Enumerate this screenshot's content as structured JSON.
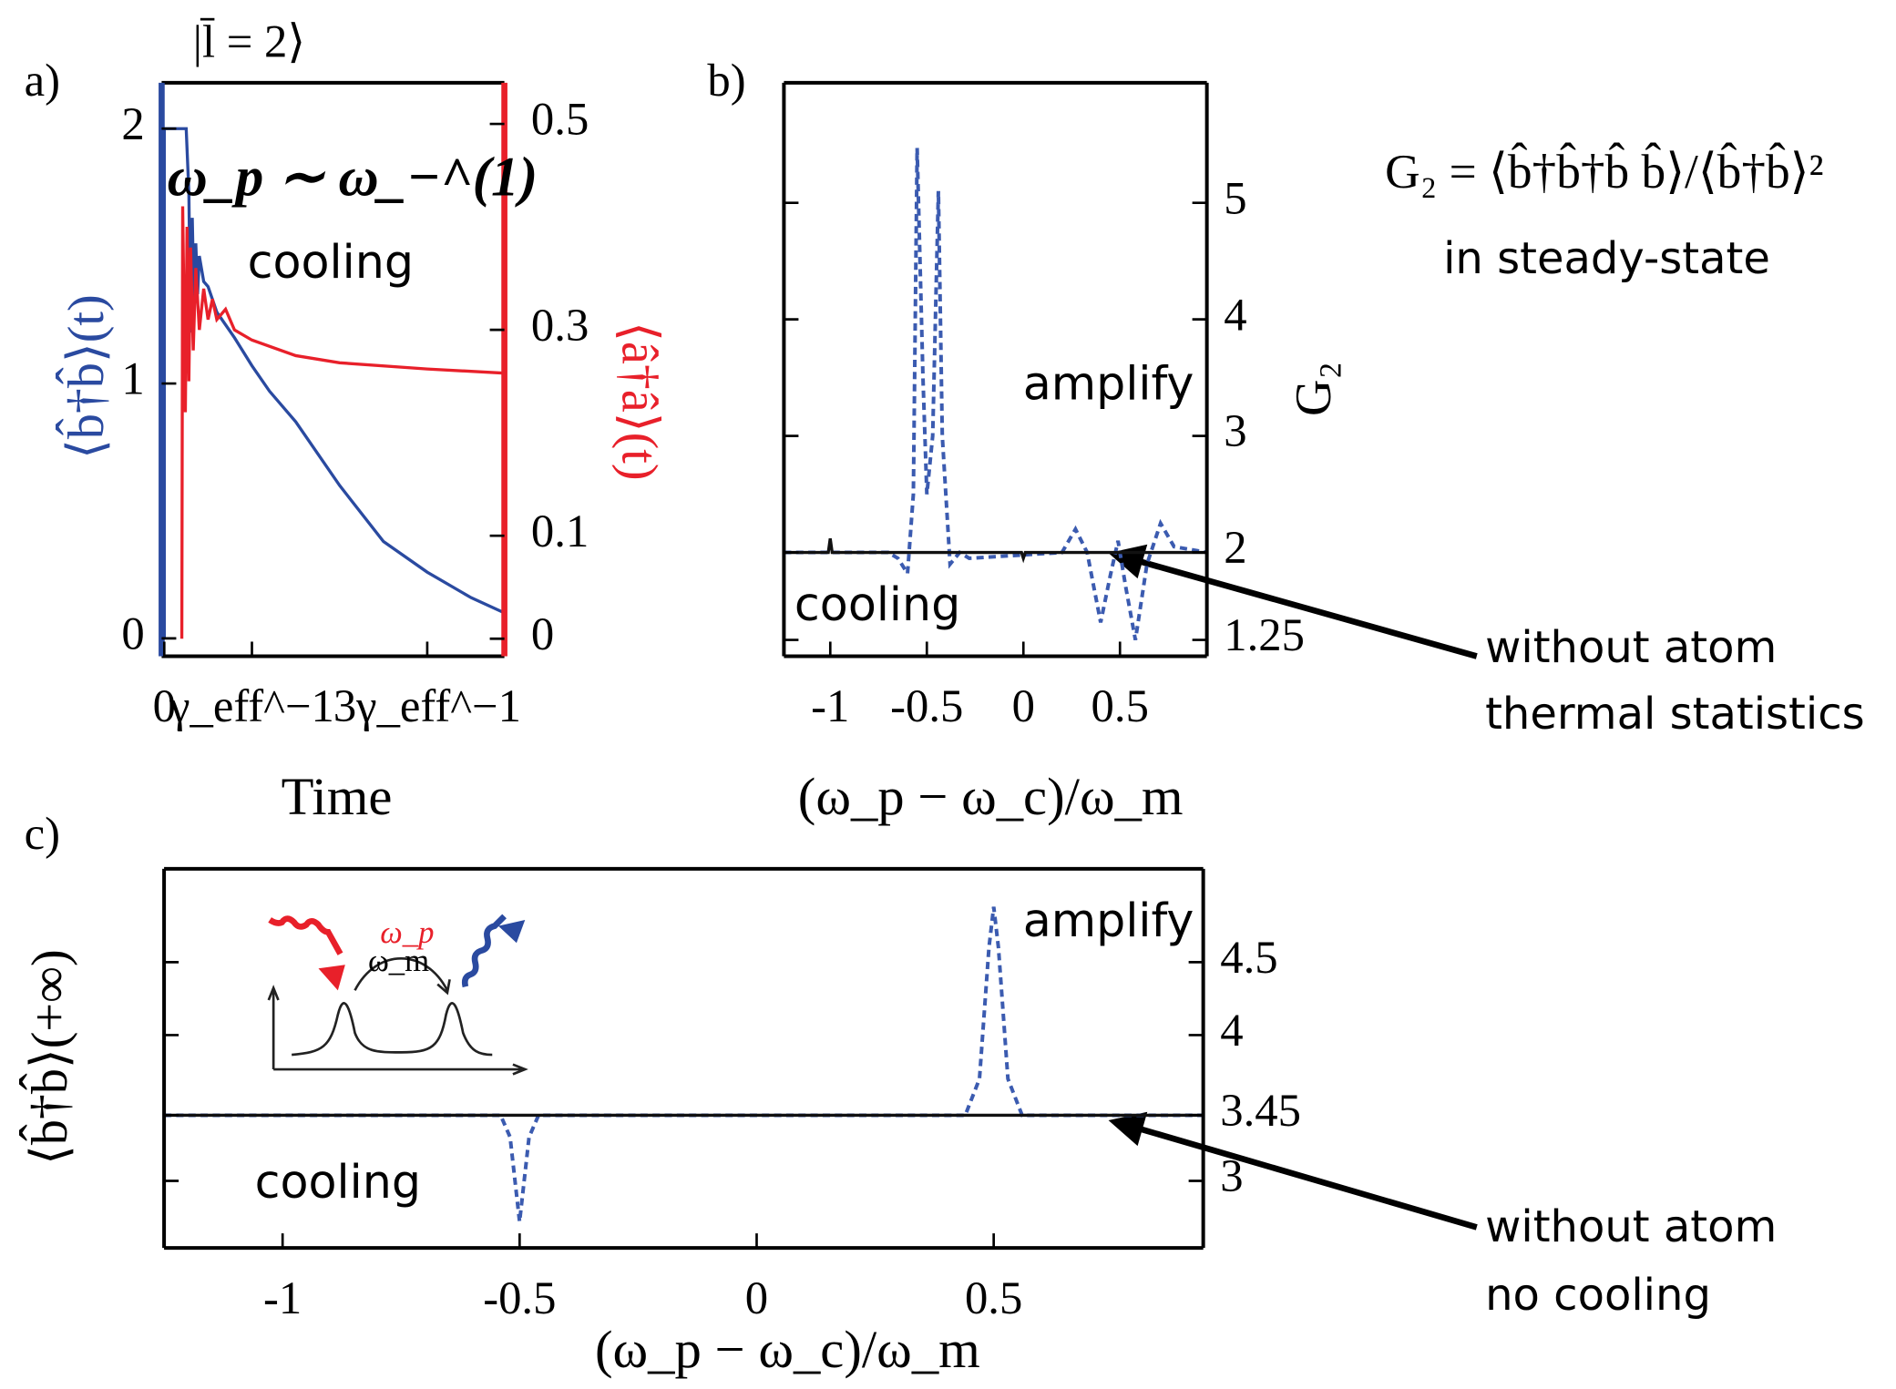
{
  "chart_data": [
    {
      "type": "line",
      "panel_label": "a)",
      "xlabel": "Time",
      "ylabel": "⟨b̂†b̂⟩(t)",
      "y2label": "⟨â†â⟩(t)",
      "annotations": [
        "|l̄ = 2⟩",
        "ω_p ∼ ω_−^(1)",
        "cooling"
      ],
      "xlim": [
        -0.03,
        3.88
      ],
      "xticks": [
        {
          "value": 0,
          "label": "0"
        },
        {
          "value": 1,
          "label": "γ_eff^−1"
        },
        {
          "value": 3,
          "label": "3γ_eff^−1"
        }
      ],
      "ylim": [
        -0.07,
        2.18
      ],
      "yticks": [
        0,
        1,
        2
      ],
      "y2lim": [
        -0.017,
        0.54
      ],
      "y2ticks": [
        0,
        0.1,
        0.3,
        0.5
      ],
      "ycolor": "#2a4aa0",
      "y2color": "#e8202a",
      "grid": false,
      "series": [
        {
          "color": "#2a4aa0",
          "dash": false,
          "x": [
            0,
            0,
            0.25,
            0.28,
            0.3,
            0.32,
            0.34,
            0.36,
            0.38,
            0.4,
            0.45,
            0.5,
            0.6,
            0.8,
            1,
            1.2,
            1.5,
            2,
            2.5,
            3,
            3.5,
            3.88
          ],
          "values": [
            0,
            2,
            2,
            1.75,
            1.2,
            1.65,
            1.3,
            1.55,
            1.35,
            1.5,
            1.4,
            1.38,
            1.28,
            1.18,
            1.07,
            0.97,
            0.85,
            0.6,
            0.38,
            0.26,
            0.16,
            0.1
          ]
        },
        {
          "color": "#e8202a",
          "dash": false,
          "axis": "y2",
          "x": [
            0.2,
            0.21,
            0.24,
            0.26,
            0.28,
            0.3,
            0.33,
            0.36,
            0.4,
            0.45,
            0.5,
            0.55,
            0.6,
            0.7,
            0.8,
            1,
            1.5,
            2,
            3,
            3.88
          ],
          "values": [
            0,
            0.42,
            0.22,
            0.4,
            0.25,
            0.38,
            0.28,
            0.36,
            0.3,
            0.34,
            0.31,
            0.33,
            0.31,
            0.32,
            0.3,
            0.29,
            0.275,
            0.268,
            0.262,
            0.258
          ]
        }
      ]
    },
    {
      "type": "line",
      "panel_label": "b)",
      "xlabel": "(ω_p − ω_c)/ω_m",
      "ylabel": "G₂",
      "annotations": [
        "amplify",
        "cooling"
      ],
      "xlim": [
        -1.24,
        0.95
      ],
      "xticks": [
        -1,
        -0.5,
        0,
        0.5
      ],
      "ylim": [
        1.11,
        6.03
      ],
      "yticks": [
        1.25,
        2,
        3,
        4,
        5
      ],
      "grid": false,
      "series": [
        {
          "color": "#3b5bb0",
          "dash": true,
          "x": [
            -1.24,
            -0.7,
            -0.65,
            -0.6,
            -0.57,
            -0.55,
            -0.52,
            -0.5,
            -0.47,
            -0.44,
            -0.42,
            -0.38,
            -0.33,
            -0.28,
            0.2,
            0.27,
            0.33,
            0.4,
            0.45,
            0.49,
            0.53,
            0.58,
            0.64,
            0.71,
            0.78,
            0.95
          ],
          "values": [
            2,
            2,
            1.95,
            1.82,
            2.5,
            5.47,
            3.5,
            2.5,
            3,
            5.1,
            3,
            1.9,
            2,
            1.95,
            2,
            2.2,
            2,
            1.4,
            1.8,
            2.1,
            1.7,
            1.25,
            1.9,
            2.25,
            2.05,
            2
          ]
        },
        {
          "color": "#111111",
          "dash": false,
          "x": [
            -1.24,
            -1.01,
            -1,
            -0.99,
            -0.01,
            0,
            0.01,
            0.95
          ],
          "values": [
            2,
            2,
            2.12,
            2,
            2,
            1.95,
            2,
            2
          ]
        }
      ]
    },
    {
      "type": "line",
      "panel_label": "c)",
      "xlabel": "(ω_p − ω_c)/ω_m",
      "ylabel": "⟨b̂†b̂⟩(+∞)",
      "annotations": [
        "amplify",
        "cooling",
        "ω_p",
        "ω_m"
      ],
      "xlim": [
        -1.25,
        0.942
      ],
      "xticks": [
        -1,
        -0.5,
        0,
        0.5
      ],
      "ylim": [
        2.54,
        5.14
      ],
      "yticks": [
        3,
        3.45,
        4,
        4.5
      ],
      "grid": false,
      "series": [
        {
          "color": "#3b5bb0",
          "dash": true,
          "x": [
            -1.25,
            -0.54,
            -0.52,
            -0.5,
            -0.48,
            -0.46,
            0.44,
            0.47,
            0.49,
            0.5,
            0.51,
            0.53,
            0.56,
            0.94
          ],
          "values": [
            3.45,
            3.45,
            3.3,
            2.72,
            3.3,
            3.45,
            3.45,
            3.7,
            4.6,
            4.88,
            4.6,
            3.7,
            3.45,
            3.45
          ]
        },
        {
          "color": "#111111",
          "dash": false,
          "x": [
            -1.25,
            0.94
          ],
          "values": [
            3.45,
            3.45
          ]
        }
      ]
    }
  ],
  "notes": [
    "G₂ = ⟨b̂†b̂†b̂ b̂⟩/⟨b̂†b̂⟩²",
    "in steady-state",
    "without atom",
    "thermal statistics",
    "without atom",
    "no cooling"
  ]
}
